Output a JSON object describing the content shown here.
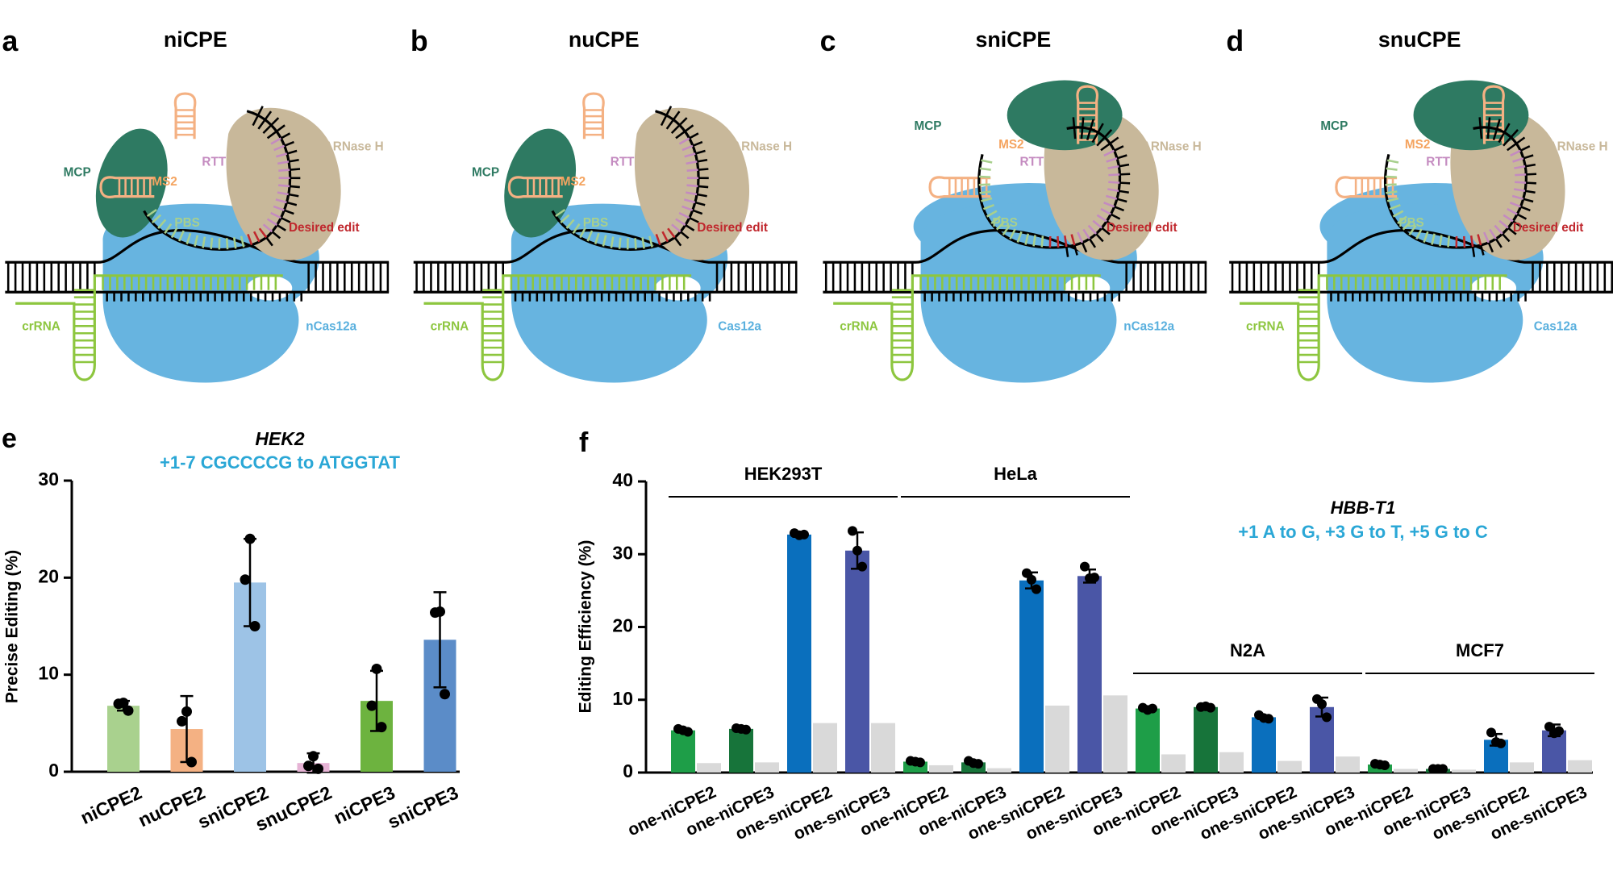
{
  "diagrams": [
    {
      "letter": "a",
      "title": "niCPE",
      "labels": {
        "mcp": "MCP",
        "ms2": "MS2",
        "rtt": "RTT",
        "rt": "RTΔRNase H",
        "pbs": "PBS",
        "edit": "Desired edit",
        "crrna": "crRNA",
        "cas": "nCas12a"
      }
    },
    {
      "letter": "b",
      "title": "nuCPE",
      "labels": {
        "mcp": "MCP",
        "ms2": "MS2",
        "rtt": "RTT",
        "rt": "RTΔRNase H",
        "pbs": "PBS",
        "edit": "Desired edit",
        "crrna": "crRNA",
        "cas": "Cas12a"
      }
    },
    {
      "letter": "c",
      "title": "sniCPE",
      "labels": {
        "mcp": "MCP",
        "ms2": "MS2",
        "rtt": "RTT",
        "rt": "RTΔRNase H",
        "pbs": "PBS",
        "edit": "Desired edit",
        "crrna": "crRNA",
        "cas": "nCas12a"
      }
    },
    {
      "letter": "d",
      "title": "snuCPE",
      "labels": {
        "mcp": "MCP",
        "ms2": "MS2",
        "rtt": "RTT",
        "rt": "RTΔRNase H",
        "pbs": "PBS",
        "edit": "Desired edit",
        "crrna": "crRNA",
        "cas": "Cas12a"
      }
    }
  ],
  "chart_data": [
    {
      "type": "bar",
      "panel": "e",
      "title": "HEK2",
      "subtitle": "+1-7 CGCCCCG to ATGGTAT",
      "y_label": "Precise Editing (%)",
      "categories": [
        "niCPE2",
        "nuCPE2",
        "sniCPE2",
        "snuCPE2",
        "niCPE3",
        "sniCPE3"
      ],
      "values": [
        6.8,
        4.4,
        19.5,
        0.9,
        7.3,
        13.6
      ],
      "errors": [
        0.5,
        3.4,
        4.5,
        1.0,
        3.1,
        4.9
      ],
      "points": [
        [
          7.1,
          7.0,
          6.3
        ],
        [
          6.2,
          5.2,
          1.0
        ],
        [
          24.0,
          19.8,
          15.0
        ],
        [
          1.6,
          0.6,
          0.3
        ],
        [
          10.6,
          6.8,
          4.6
        ],
        [
          16.5,
          16.4,
          8.0
        ]
      ],
      "colors": [
        "#a9d18e",
        "#f4b183",
        "#9dc3e6",
        "#e6b3d5",
        "#6db33f",
        "#5b8cc8"
      ],
      "ylim": [
        0,
        30
      ],
      "yticks": [
        0,
        10,
        20,
        30
      ]
    },
    {
      "type": "grouped_bar",
      "panel": "f",
      "title": "HBB-T1",
      "subtitle": "+1 A to G, +3 G to T, +5 G to C",
      "y_label": "Editing Efficiency (%)",
      "groups": [
        "HEK293T",
        "HeLa",
        "N2A",
        "MCF7"
      ],
      "categories": [
        "one-niCPE2",
        "one-niCPE3",
        "one-sniCPE2",
        "one-sniCPE3",
        "one-niCPE2",
        "one-niCPE3",
        "one-sniCPE2",
        "one-sniCPE3",
        "one-niCPE2",
        "one-niCPE3",
        "one-sniCPE2",
        "one-sniCPE3",
        "one-niCPE2",
        "one-niCPE3",
        "one-sniCPE2",
        "one-sniCPE3"
      ],
      "series": [
        {
          "colors": [
            "#1e9e48",
            "#17743a",
            "#0a6fbd",
            "#4a56a6",
            "#1e9e48",
            "#17743a",
            "#0a6fbd",
            "#4a56a6",
            "#1e9e48",
            "#17743a",
            "#0a6fbd",
            "#4a56a6",
            "#1e9e48",
            "#17743a",
            "#0a6fbd",
            "#4a56a6"
          ],
          "values": [
            5.8,
            6.0,
            32.7,
            30.5,
            1.5,
            1.4,
            26.4,
            27.0,
            8.8,
            9.0,
            7.6,
            9.0,
            1.1,
            0.5,
            4.5,
            5.8
          ],
          "errors": [
            0.2,
            0.1,
            0.15,
            2.5,
            0.1,
            0.2,
            1.1,
            0.9,
            0.15,
            0.1,
            0.25,
            1.3,
            0.1,
            0.05,
            0.8,
            0.8
          ],
          "points": [
            [
              6.0,
              5.8,
              5.6
            ],
            [
              6.1,
              6.0,
              5.9
            ],
            [
              32.9,
              32.6,
              32.7
            ],
            [
              33.2,
              30.5,
              28.3
            ],
            [
              1.6,
              1.5,
              1.4
            ],
            [
              1.6,
              1.3,
              1.2
            ],
            [
              27.4,
              26.5,
              25.2
            ],
            [
              28.3,
              26.7,
              26.8
            ],
            [
              8.9,
              8.6,
              8.8
            ],
            [
              9.0,
              9.1,
              8.9
            ],
            [
              7.9,
              7.5,
              7.4
            ],
            [
              10.1,
              9.4,
              7.6
            ],
            [
              1.2,
              1.1,
              1.0
            ],
            [
              0.5,
              0.5,
              0.5
            ],
            [
              5.5,
              4.2,
              4.0
            ],
            [
              6.3,
              5.4,
              5.7
            ]
          ]
        },
        {
          "color": "#d9d9d9",
          "values": [
            1.3,
            1.4,
            6.8,
            6.8,
            1.0,
            0.6,
            9.2,
            10.6,
            2.5,
            2.8,
            1.6,
            2.2,
            0.5,
            0.4,
            1.4,
            1.7
          ]
        }
      ],
      "ylim": [
        0,
        40
      ],
      "yticks": [
        0,
        10,
        20,
        30,
        40
      ]
    }
  ]
}
